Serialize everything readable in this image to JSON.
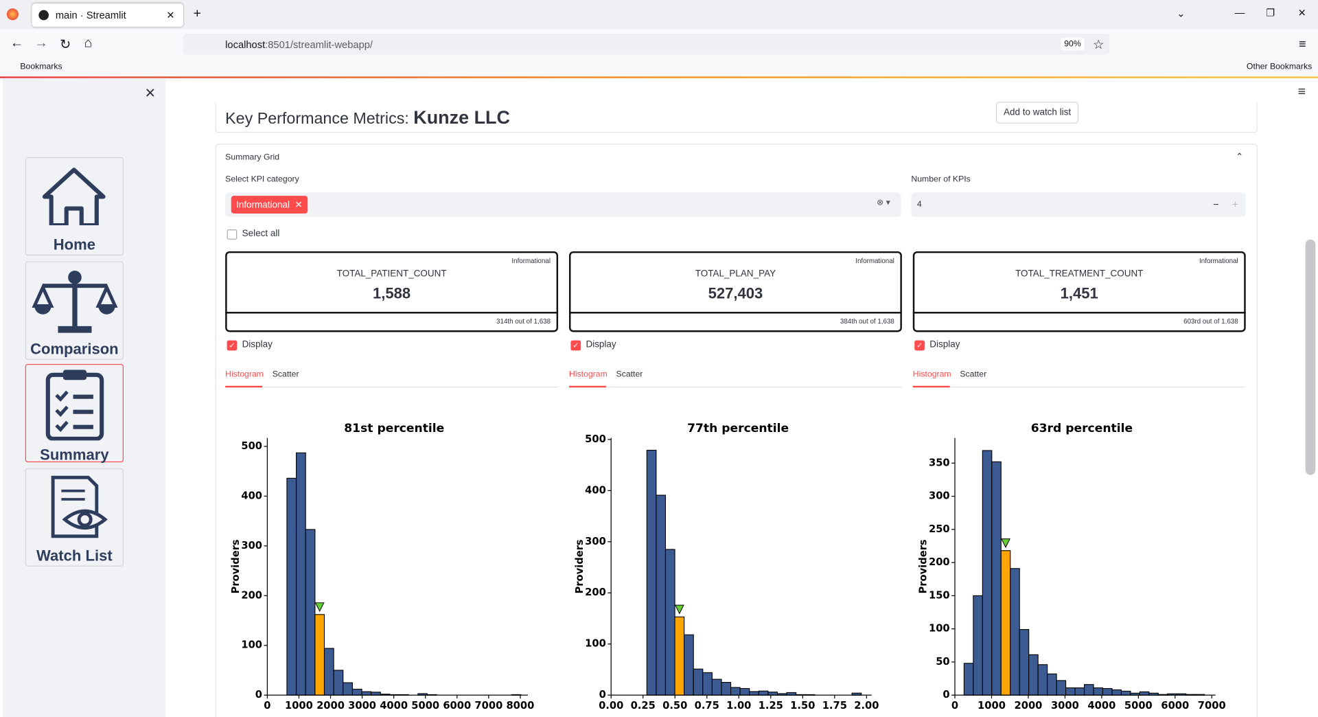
{
  "browser": {
    "tab_title": "main · Streamlit",
    "url_host": "localhost",
    "url_rest": ":8501/streamlit-webapp/",
    "zoom": "90%",
    "bookmarks": "Bookmarks",
    "other_bookmarks": "Other Bookmarks"
  },
  "sidebar": {
    "nav": [
      "Home",
      "Comparison",
      "Summary",
      "Watch List"
    ]
  },
  "header": {
    "title_prefix": "Key Performance Metrics:",
    "company": "Kunze LLC",
    "watch_button": "Add to watch list"
  },
  "summary": {
    "label": "Summary Grid",
    "category_label": "Select KPI category",
    "selected_tag": "Informational",
    "count_label": "Number of KPIs",
    "count_value": 4,
    "select_all": "Select all"
  },
  "kpis": [
    {
      "category": "Informational",
      "name": "TOTAL_PATIENT_COUNT",
      "value": "1,588",
      "rank": "314th out of 1,638",
      "display": "Display",
      "tabs": [
        "Histogram",
        "Scatter"
      ]
    },
    {
      "category": "Informational",
      "name": "TOTAL_PLAN_PAY",
      "value": "527,403",
      "rank": "384th out of 1,638",
      "display": "Display",
      "tabs": [
        "Histogram",
        "Scatter"
      ]
    },
    {
      "category": "Informational",
      "name": "TOTAL_TREATMENT_COUNT",
      "value": "1,451",
      "rank": "603rd out of 1,638",
      "display": "Display",
      "tabs": [
        "Histogram",
        "Scatter"
      ]
    }
  ],
  "chart_data": [
    {
      "type": "histogram",
      "title": "81st percentile",
      "y_label": "Providers",
      "color": "#3b5b92",
      "highlight_color": "#ffa500",
      "marker_color": "#66cc33",
      "highlight_bin": 3,
      "bins": [
        620,
        916,
        1212,
        1508,
        1804,
        2100,
        2396,
        2692,
        2988,
        3284,
        3580,
        3876,
        4172,
        4468,
        4764,
        5060,
        5356,
        5652,
        5948,
        6244,
        6540,
        6836,
        7132,
        7428,
        7724,
        8020
      ],
      "values": [
        436,
        487,
        333,
        162,
        94,
        50,
        25,
        12,
        7,
        6,
        2,
        1,
        1,
        0,
        3,
        1,
        0,
        0,
        0,
        0,
        0,
        0,
        0,
        0,
        1
      ],
      "xlim": [
        0,
        8240
      ],
      "ylim": [
        0,
        517
      ],
      "xticks": [
        0,
        1000,
        2000,
        3000,
        4000,
        5000,
        6000,
        7000,
        8000
      ],
      "yticks": [
        0,
        100,
        200,
        300,
        400,
        500
      ]
    },
    {
      "type": "histogram",
      "title": "77th percentile",
      "y_label": "Providers",
      "color": "#3b5b92",
      "highlight_color": "#ffa500",
      "marker_color": "#66cc33",
      "highlight_bin": 3,
      "bins": [
        0.28,
        0.353,
        0.426,
        0.499,
        0.572,
        0.645,
        0.718,
        0.791,
        0.864,
        0.937,
        1.01,
        1.083,
        1.156,
        1.229,
        1.302,
        1.375,
        1.448,
        1.521,
        1.594,
        1.667,
        1.74,
        1.813,
        1.886,
        1.959
      ],
      "values": [
        479,
        391,
        285,
        153,
        118,
        51,
        44,
        31,
        25,
        15,
        13,
        7,
        8,
        6,
        3,
        5,
        1,
        1,
        0,
        0,
        0,
        0,
        4
      ],
      "xlim": [
        0,
        2.04
      ],
      "ylim": [
        0,
        503
      ],
      "xticks": [
        {
          "value": 0,
          "label": "0.00"
        },
        {
          "value": 0.25,
          "label": "0.25"
        },
        {
          "value": 0.5,
          "label": "0.50"
        },
        {
          "value": 0.75,
          "label": "0.75"
        },
        {
          "value": 1,
          "label": "1.00"
        },
        {
          "value": 1.25,
          "label": "1.25"
        },
        {
          "value": 1.5,
          "label": "1.50"
        },
        {
          "value": 1.75,
          "label": "1.75"
        },
        {
          "value": 2,
          "label": "2.00"
        }
      ],
      "yticks": [
        0,
        100,
        200,
        300,
        400,
        500
      ]
    },
    {
      "type": "histogram",
      "title": "63rd percentile",
      "y_label": "Providers",
      "color": "#3b5b92",
      "highlight_color": "#ffa500",
      "marker_color": "#66cc33",
      "highlight_bin": 4,
      "bins": [
        250,
        502,
        754,
        1006,
        1258,
        1510,
        1762,
        2014,
        2266,
        2518,
        2770,
        3022,
        3274,
        3526,
        3778,
        4030,
        4282,
        4534,
        4786,
        5038,
        5290,
        5542,
        5794,
        6046,
        6298,
        6550,
        6802
      ],
      "values": [
        48,
        150,
        369,
        352,
        218,
        191,
        99,
        61,
        46,
        32,
        22,
        11,
        11,
        16,
        11,
        10,
        8,
        6,
        3,
        5,
        3,
        1,
        2,
        2,
        1,
        1
      ],
      "xlim": [
        0,
        7100
      ],
      "ylim": [
        0,
        388
      ],
      "xticks": [
        0,
        1000,
        2000,
        3000,
        4000,
        5000,
        6000,
        7000
      ],
      "yticks": [
        0,
        50,
        100,
        150,
        200,
        250,
        300,
        350
      ]
    }
  ]
}
